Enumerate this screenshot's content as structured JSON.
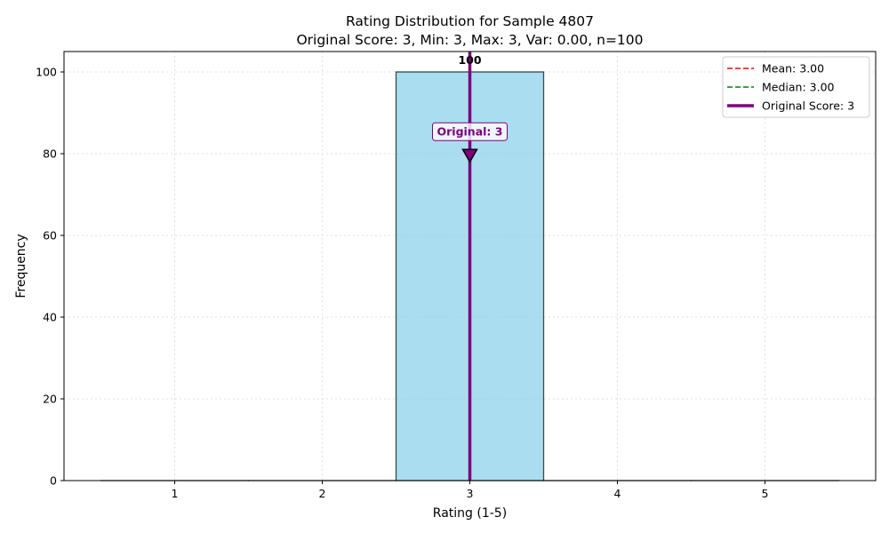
{
  "chart_data": {
    "type": "bar",
    "title": "Rating Distribution for Sample 4807",
    "subtitle": "Original Score: 3, Min: 3, Max: 3, Var: 0.00, n=100",
    "xlabel": "Rating (1-5)",
    "ylabel": "Frequency",
    "categories": [
      1,
      2,
      3,
      4,
      5
    ],
    "values": [
      0,
      0,
      100,
      0,
      0
    ],
    "bar_labels": [
      "",
      "",
      "100",
      "",
      ""
    ],
    "xlim": [
      0.25,
      5.75
    ],
    "ylim": [
      0,
      105
    ],
    "xticks": [
      1,
      2,
      3,
      4,
      5
    ],
    "yticks": [
      0,
      20,
      40,
      60,
      80,
      100
    ],
    "grid": true,
    "legend_position": "upper-right",
    "bar_color": "#87ceeb",
    "bar_edge_color": "#2f4f4f",
    "reference_lines": [
      {
        "label": "Mean: 3.00",
        "x": 3.0,
        "style": "dashed",
        "color": "#ff0000"
      },
      {
        "label": "Median: 3.00",
        "x": 3.0,
        "style": "dashed",
        "color": "#008000"
      },
      {
        "label": "Original Score: 3",
        "x": 3,
        "style": "solid",
        "color": "#800080"
      }
    ],
    "annotation": {
      "text": "Original: 3",
      "x": 3,
      "y": 78,
      "color": "#800080"
    }
  }
}
